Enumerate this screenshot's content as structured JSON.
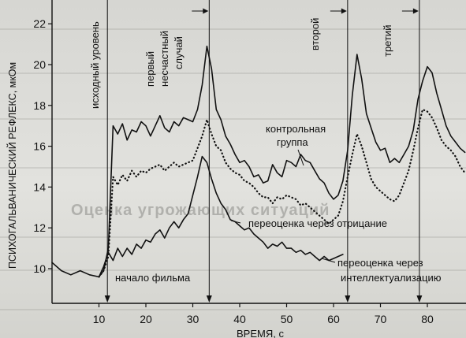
{
  "chart_data": {
    "type": "line",
    "xlabel": "ВРЕМЯ, с",
    "ylabel": "ПСИХОГАЛЬВАНИЧЕСКИЙ РЕФЛЕКС, мкОм",
    "xlim": [
      0,
      92
    ],
    "ylim": [
      9,
      23.3
    ],
    "x_ticks": [
      10,
      20,
      30,
      40,
      50,
      60,
      70,
      80
    ],
    "y_ticks": [
      10,
      12,
      14,
      16,
      18,
      20,
      22
    ],
    "grid": false,
    "series": [
      {
        "name": "контрольная группа",
        "style": "solid",
        "points": [
          [
            10,
            9.6
          ],
          [
            11,
            9.9
          ],
          [
            12,
            11.0
          ],
          [
            13,
            17.0
          ],
          [
            14,
            16.6
          ],
          [
            15,
            17.1
          ],
          [
            16,
            16.3
          ],
          [
            17,
            16.8
          ],
          [
            18,
            16.7
          ],
          [
            19,
            17.2
          ],
          [
            20,
            17.0
          ],
          [
            21,
            16.5
          ],
          [
            22,
            17.0
          ],
          [
            23,
            17.5
          ],
          [
            24,
            16.9
          ],
          [
            25,
            16.7
          ],
          [
            26,
            17.2
          ],
          [
            27,
            17.0
          ],
          [
            28,
            17.4
          ],
          [
            29,
            17.3
          ],
          [
            30,
            17.2
          ],
          [
            31,
            17.8
          ],
          [
            32,
            19.0
          ],
          [
            33,
            20.9
          ],
          [
            34,
            19.8
          ],
          [
            35,
            17.8
          ],
          [
            36,
            17.3
          ],
          [
            37,
            16.5
          ],
          [
            38,
            16.1
          ],
          [
            39,
            15.6
          ],
          [
            40,
            15.2
          ],
          [
            41,
            15.3
          ],
          [
            42,
            15.0
          ],
          [
            43,
            14.5
          ],
          [
            44,
            14.6
          ],
          [
            45,
            14.2
          ],
          [
            46,
            14.3
          ],
          [
            47,
            15.1
          ],
          [
            48,
            14.7
          ],
          [
            49,
            14.5
          ],
          [
            50,
            15.3
          ],
          [
            51,
            15.2
          ],
          [
            52,
            15.0
          ],
          [
            53,
            15.6
          ],
          [
            54,
            15.3
          ],
          [
            55,
            15.2
          ],
          [
            56,
            14.8
          ],
          [
            57,
            14.4
          ],
          [
            58,
            14.2
          ],
          [
            59,
            13.7
          ],
          [
            60,
            13.4
          ],
          [
            61,
            13.6
          ],
          [
            62,
            14.3
          ],
          [
            63,
            15.8
          ],
          [
            64,
            18.5
          ],
          [
            65,
            20.5
          ],
          [
            66,
            19.3
          ],
          [
            67,
            17.6
          ],
          [
            68,
            16.9
          ],
          [
            69,
            16.2
          ],
          [
            70,
            15.8
          ],
          [
            71,
            15.9
          ],
          [
            72,
            15.2
          ],
          [
            73,
            15.4
          ],
          [
            74,
            15.2
          ],
          [
            75,
            15.6
          ],
          [
            76,
            16.0
          ],
          [
            77,
            16.8
          ],
          [
            78,
            18.3
          ],
          [
            79,
            19.2
          ],
          [
            80,
            19.9
          ],
          [
            81,
            19.6
          ],
          [
            82,
            18.6
          ],
          [
            83,
            17.8
          ],
          [
            84,
            17.0
          ],
          [
            85,
            16.5
          ],
          [
            86,
            16.2
          ],
          [
            87,
            15.9
          ],
          [
            88,
            15.7
          ]
        ]
      },
      {
        "name": "переоценка через отрицание",
        "style": "dotted",
        "points": [
          [
            10,
            9.6
          ],
          [
            11,
            9.9
          ],
          [
            12,
            10.6
          ],
          [
            13,
            14.5
          ],
          [
            14,
            14.1
          ],
          [
            15,
            14.6
          ],
          [
            16,
            14.3
          ],
          [
            17,
            14.8
          ],
          [
            18,
            14.5
          ],
          [
            19,
            14.8
          ],
          [
            20,
            14.7
          ],
          [
            21,
            14.9
          ],
          [
            22,
            15.0
          ],
          [
            23,
            15.1
          ],
          [
            24,
            14.8
          ],
          [
            25,
            15.0
          ],
          [
            26,
            15.2
          ],
          [
            27,
            15.0
          ],
          [
            28,
            15.1
          ],
          [
            29,
            15.2
          ],
          [
            30,
            15.3
          ],
          [
            31,
            15.9
          ],
          [
            32,
            16.5
          ],
          [
            33,
            17.3
          ],
          [
            34,
            16.6
          ],
          [
            35,
            16.0
          ],
          [
            36,
            15.8
          ],
          [
            37,
            15.2
          ],
          [
            38,
            14.9
          ],
          [
            39,
            14.7
          ],
          [
            40,
            14.6
          ],
          [
            41,
            14.3
          ],
          [
            42,
            14.2
          ],
          [
            43,
            14.0
          ],
          [
            44,
            13.7
          ],
          [
            45,
            13.5
          ],
          [
            46,
            13.5
          ],
          [
            47,
            13.2
          ],
          [
            48,
            13.5
          ],
          [
            49,
            13.4
          ],
          [
            50,
            13.6
          ],
          [
            51,
            13.5
          ],
          [
            52,
            13.4
          ],
          [
            53,
            13.1
          ],
          [
            54,
            13.2
          ],
          [
            55,
            13.0
          ],
          [
            56,
            12.8
          ],
          [
            57,
            12.6
          ],
          [
            58,
            12.4
          ],
          [
            59,
            12.2
          ],
          [
            60,
            12.4
          ],
          [
            61,
            12.6
          ],
          [
            62,
            13.3
          ],
          [
            63,
            14.5
          ],
          [
            64,
            15.6
          ],
          [
            65,
            16.6
          ],
          [
            66,
            16.0
          ],
          [
            67,
            15.2
          ],
          [
            68,
            14.4
          ],
          [
            69,
            14.0
          ],
          [
            70,
            13.8
          ],
          [
            71,
            13.6
          ],
          [
            72,
            13.4
          ],
          [
            73,
            13.3
          ],
          [
            74,
            13.6
          ],
          [
            75,
            14.2
          ],
          [
            76,
            14.8
          ],
          [
            77,
            15.8
          ],
          [
            78,
            16.9
          ],
          [
            79,
            17.8
          ],
          [
            80,
            17.7
          ],
          [
            81,
            17.4
          ],
          [
            82,
            16.9
          ],
          [
            83,
            16.3
          ],
          [
            84,
            16.0
          ],
          [
            85,
            15.8
          ],
          [
            86,
            15.5
          ],
          [
            87,
            15.0
          ],
          [
            88,
            14.7
          ]
        ]
      },
      {
        "name": "переоценка через интеллектуализацию",
        "style": "solid",
        "points": [
          [
            0,
            10.3
          ],
          [
            2,
            9.9
          ],
          [
            4,
            9.7
          ],
          [
            6,
            9.9
          ],
          [
            8,
            9.7
          ],
          [
            10,
            9.6
          ],
          [
            11,
            10.1
          ],
          [
            12,
            10.8
          ],
          [
            13,
            10.4
          ],
          [
            14,
            11.0
          ],
          [
            15,
            10.6
          ],
          [
            16,
            11.0
          ],
          [
            17,
            10.7
          ],
          [
            18,
            11.2
          ],
          [
            19,
            11.0
          ],
          [
            20,
            11.4
          ],
          [
            21,
            11.3
          ],
          [
            22,
            11.7
          ],
          [
            23,
            11.9
          ],
          [
            24,
            11.5
          ],
          [
            25,
            12.0
          ],
          [
            26,
            12.3
          ],
          [
            27,
            12.0
          ],
          [
            28,
            12.4
          ],
          [
            29,
            12.7
          ],
          [
            30,
            13.6
          ],
          [
            31,
            14.5
          ],
          [
            32,
            15.5
          ],
          [
            33,
            15.2
          ],
          [
            34,
            14.4
          ],
          [
            35,
            13.7
          ],
          [
            36,
            13.2
          ],
          [
            37,
            12.9
          ],
          [
            38,
            12.4
          ],
          [
            39,
            12.3
          ],
          [
            40,
            12.1
          ],
          [
            41,
            11.9
          ],
          [
            42,
            12.0
          ],
          [
            43,
            11.7
          ],
          [
            44,
            11.5
          ],
          [
            45,
            11.3
          ],
          [
            46,
            11.0
          ],
          [
            47,
            11.2
          ],
          [
            48,
            11.1
          ],
          [
            49,
            11.3
          ],
          [
            50,
            11.0
          ],
          [
            51,
            11.0
          ],
          [
            52,
            10.8
          ],
          [
            53,
            10.9
          ],
          [
            54,
            10.7
          ],
          [
            55,
            10.8
          ],
          [
            56,
            10.6
          ],
          [
            57,
            10.4
          ],
          [
            58,
            10.6
          ],
          [
            59,
            10.4
          ],
          [
            60,
            10.5
          ],
          [
            61,
            10.6
          ],
          [
            62,
            10.7
          ]
        ]
      }
    ],
    "annotations": {
      "arrows_x": [
        11.8,
        33.5,
        63.0,
        78.3
      ],
      "event_labels": [
        {
          "x": 11.8,
          "text": "исходный уровень"
        },
        {
          "x": 33.5,
          "text": "первый несчастный случай"
        },
        {
          "x": 63.0,
          "text": "второй"
        },
        {
          "x": 78.3,
          "text": "третий"
        },
        {
          "x": 11.8,
          "text": "начало фильма"
        }
      ]
    }
  },
  "labels": {
    "event_base": "исходный уровень",
    "event_first_1": "первый",
    "event_first_2": "несчастный",
    "event_first_3": "случай",
    "event_second": "второй",
    "event_third": "третий",
    "film_start": "начало фильма",
    "control_1": "контрольная",
    "control_2": "группа",
    "denial": "переоценка через отрицание",
    "intell_1": "переоценка через",
    "intell_2": "интеллектуализацию"
  },
  "background_text": "Оценка угрожающих ситуаций"
}
